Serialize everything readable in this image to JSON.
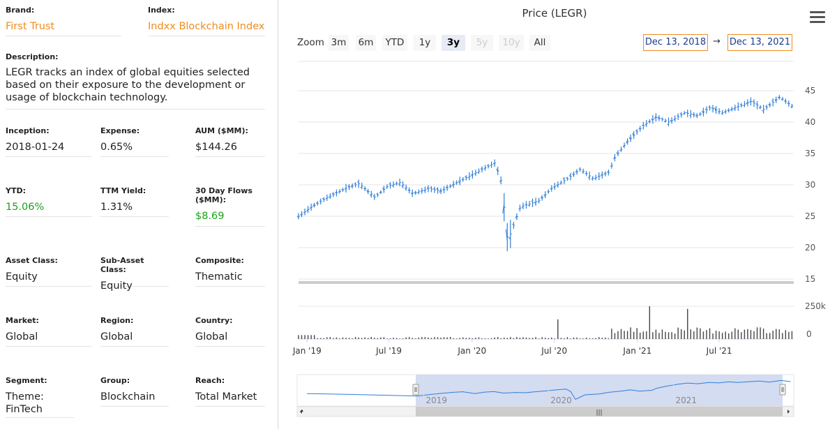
{
  "left": {
    "brand": {
      "label": "Brand:",
      "value": "First Trust"
    },
    "index": {
      "label": "Index:",
      "value": "Indxx Blockchain Index"
    },
    "description": {
      "label": "Description:",
      "value": "LEGR tracks an index of global equities selected based on their exposure to the development or usage of blockchain technology."
    },
    "inception": {
      "label": "Inception:",
      "value": "2018-01-24"
    },
    "expense": {
      "label": "Expense:",
      "value": "0.65%"
    },
    "aum": {
      "label": "AUM ($MM):",
      "value": "$144.26"
    },
    "ytd": {
      "label": "YTD:",
      "value": "15.06%"
    },
    "ttm_yield": {
      "label": "TTM Yield:",
      "value": "1.31%"
    },
    "flows": {
      "label": "30 Day Flows ($MM):",
      "value": "$8.69"
    },
    "asset_class": {
      "label": "Asset Class:",
      "value": "Equity"
    },
    "sub_asset_class": {
      "label": "Sub-Asset Class:",
      "value": "Equity"
    },
    "composite": {
      "label": "Composite:",
      "value": "Thematic"
    },
    "market": {
      "label": "Market:",
      "value": "Global"
    },
    "region": {
      "label": "Region:",
      "value": "Global"
    },
    "country": {
      "label": "Country:",
      "value": "Global"
    },
    "segment": {
      "label": "Segment:",
      "value": "Theme: FinTech"
    },
    "group": {
      "label": "Group:",
      "value": "Blockchain"
    },
    "reach": {
      "label": "Reach:",
      "value": "Total Market"
    }
  },
  "chart_ui": {
    "title": "Price (LEGR)",
    "menu_icon": "hamburger-menu-icon",
    "zoom_label": "Zoom",
    "zoom_buttons": [
      {
        "label": "3m",
        "state": "normal"
      },
      {
        "label": "6m",
        "state": "normal"
      },
      {
        "label": "YTD",
        "state": "normal"
      },
      {
        "label": "1y",
        "state": "normal"
      },
      {
        "label": "3y",
        "state": "active"
      },
      {
        "label": "5y",
        "state": "disabled"
      },
      {
        "label": "10y",
        "state": "disabled"
      },
      {
        "label": "All",
        "state": "normal"
      }
    ],
    "from_date": "Dec 13, 2018",
    "arrow": "→",
    "to_date": "Dec 13, 2021",
    "navigator_years": [
      "2019",
      "2020",
      "2021"
    ],
    "colors": {
      "line": "#2f7ed8",
      "volume": "#444444",
      "range_box": "#f08c1e",
      "navigator_fill": "#c9d3ee"
    }
  },
  "chart_data": {
    "type": "ohlc",
    "title": "Price (LEGR)",
    "x_ticks": [
      "Jan '19",
      "Jul '19",
      "Jan '20",
      "Jul '20",
      "Jan '21",
      "Jul '21"
    ],
    "price_ticks": [
      "45",
      "40",
      "35",
      "30",
      "25",
      "20",
      "15"
    ],
    "volume_ticks": [
      "250k",
      "0"
    ],
    "ylim": [
      15,
      47
    ],
    "weekly_close_approx": [
      {
        "date": "2018-12-14",
        "close": 25.0
      },
      {
        "date": "2019-01-11",
        "close": 26.5
      },
      {
        "date": "2019-02-15",
        "close": 28.0
      },
      {
        "date": "2019-03-29",
        "close": 29.5
      },
      {
        "date": "2019-04-26",
        "close": 30.2
      },
      {
        "date": "2019-05-31",
        "close": 28.0
      },
      {
        "date": "2019-06-28",
        "close": 29.8
      },
      {
        "date": "2019-07-26",
        "close": 30.4
      },
      {
        "date": "2019-08-23",
        "close": 28.6
      },
      {
        "date": "2019-09-27",
        "close": 29.4
      },
      {
        "date": "2019-10-25",
        "close": 29.0
      },
      {
        "date": "2019-11-29",
        "close": 30.4
      },
      {
        "date": "2019-12-27",
        "close": 31.4
      },
      {
        "date": "2020-01-24",
        "close": 32.5
      },
      {
        "date": "2020-02-21",
        "close": 33.5
      },
      {
        "date": "2020-03-06",
        "close": 30.5
      },
      {
        "date": "2020-03-20",
        "close": 21.0
      },
      {
        "date": "2020-04-17",
        "close": 26.5
      },
      {
        "date": "2020-05-29",
        "close": 27.5
      },
      {
        "date": "2020-06-26",
        "close": 29.5
      },
      {
        "date": "2020-07-31",
        "close": 31.0
      },
      {
        "date": "2020-08-28",
        "close": 32.5
      },
      {
        "date": "2020-09-25",
        "close": 31.0
      },
      {
        "date": "2020-10-30",
        "close": 32.0
      },
      {
        "date": "2020-11-13",
        "close": 34.5
      },
      {
        "date": "2020-12-11",
        "close": 37.0
      },
      {
        "date": "2021-01-15",
        "close": 39.5
      },
      {
        "date": "2021-02-12",
        "close": 40.8
      },
      {
        "date": "2021-03-12",
        "close": 40.0
      },
      {
        "date": "2021-04-16",
        "close": 41.5
      },
      {
        "date": "2021-05-14",
        "close": 41.0
      },
      {
        "date": "2021-06-11",
        "close": 42.3
      },
      {
        "date": "2021-07-09",
        "close": 41.5
      },
      {
        "date": "2021-08-13",
        "close": 42.5
      },
      {
        "date": "2021-09-10",
        "close": 43.3
      },
      {
        "date": "2021-10-08",
        "close": 42.0
      },
      {
        "date": "2021-11-12",
        "close": 44.0
      },
      {
        "date": "2021-12-10",
        "close": 42.5
      }
    ],
    "volume_spikes_approx": [
      {
        "date": "2020-07-10",
        "volume": 150000
      },
      {
        "date": "2021-01-29",
        "volume": 250000
      },
      {
        "date": "2021-04-23",
        "volume": 230000
      }
    ]
  }
}
